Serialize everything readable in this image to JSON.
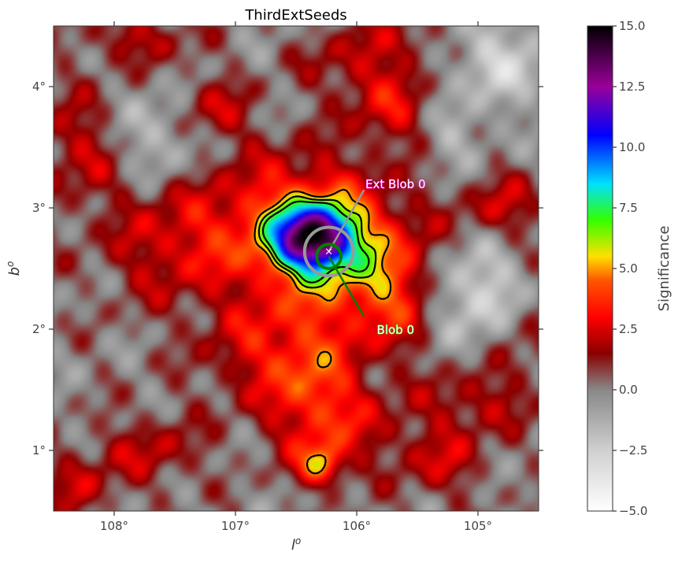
{
  "chart_data": {
    "type": "heatmap",
    "title": "ThirdExtSeeds",
    "xlabel": "l",
    "xlabel_sup": "o",
    "ylabel": "b",
    "ylabel_sup": "o",
    "x_ticks": [
      {
        "value": 108,
        "label": "108°"
      },
      {
        "value": 107,
        "label": "107°"
      },
      {
        "value": 106,
        "label": "106°"
      },
      {
        "value": 105,
        "label": "105°"
      }
    ],
    "y_ticks": [
      {
        "value": 4,
        "label": "4°"
      },
      {
        "value": 3,
        "label": "3°"
      },
      {
        "value": 2,
        "label": "2°"
      },
      {
        "value": 1,
        "label": "1°"
      }
    ],
    "xlim": [
      108.5,
      104.5
    ],
    "ylim": [
      0.5,
      4.5
    ],
    "colorbar": {
      "label": "Significance",
      "range": [
        -5,
        15
      ],
      "ticks": [
        {
          "value": 15,
          "label": "15.0"
        },
        {
          "value": 12.5,
          "label": "12.5"
        },
        {
          "value": 10,
          "label": "10.0"
        },
        {
          "value": 7.5,
          "label": "7.5"
        },
        {
          "value": 5,
          "label": "5.0"
        },
        {
          "value": 2.5,
          "label": "2.5"
        },
        {
          "value": 0,
          "label": "0.0"
        },
        {
          "value": -2.5,
          "label": "−2.5"
        },
        {
          "value": -5,
          "label": "−5.0"
        }
      ],
      "stops": [
        {
          "value": -5,
          "color": "#ffffff"
        },
        {
          "value": -2.5,
          "color": "#d0d0d0"
        },
        {
          "value": 0,
          "color": "#888888"
        },
        {
          "value": 1.5,
          "color": "#8b0000"
        },
        {
          "value": 3,
          "color": "#ff0000"
        },
        {
          "value": 4.5,
          "color": "#ff5500"
        },
        {
          "value": 5.5,
          "color": "#ffe000"
        },
        {
          "value": 7,
          "color": "#33ff00"
        },
        {
          "value": 8.5,
          "color": "#00e0ff"
        },
        {
          "value": 10.5,
          "color": "#0000ff"
        },
        {
          "value": 12.5,
          "color": "#990099"
        },
        {
          "value": 15,
          "color": "#000000"
        }
      ]
    },
    "sources": [
      {
        "l": 106.35,
        "b": 2.75,
        "amp": 10.5,
        "sx": 0.22,
        "sy": 0.18
      },
      {
        "l": 106.2,
        "b": 2.6,
        "amp": 4.0,
        "sx": 0.5,
        "sy": 0.45
      },
      {
        "l": 106.6,
        "b": 2.95,
        "amp": 2.5,
        "sx": 0.45,
        "sy": 0.35
      },
      {
        "l": 106.3,
        "b": 0.88,
        "amp": 4.5,
        "sx": 0.13,
        "sy": 0.12
      },
      {
        "l": 106.35,
        "b": 1.55,
        "amp": 2.8,
        "sx": 0.25,
        "sy": 0.35
      },
      {
        "l": 106.1,
        "b": 1.2,
        "amp": 2.0,
        "sx": 0.4,
        "sy": 0.25
      },
      {
        "l": 107.5,
        "b": 2.7,
        "amp": 2.5,
        "sx": 0.4,
        "sy": 0.35
      },
      {
        "l": 107.2,
        "b": 3.8,
        "amp": 2.3,
        "sx": 0.22,
        "sy": 0.2
      },
      {
        "l": 108.3,
        "b": 3.5,
        "amp": 2.0,
        "sx": 0.25,
        "sy": 0.35
      },
      {
        "l": 105.7,
        "b": 3.8,
        "amp": 2.5,
        "sx": 0.25,
        "sy": 0.2
      },
      {
        "l": 105.7,
        "b": 2.3,
        "amp": 2.5,
        "sx": 0.25,
        "sy": 0.35
      },
      {
        "l": 107.7,
        "b": 1.0,
        "amp": 2.0,
        "sx": 0.3,
        "sy": 0.2
      },
      {
        "l": 108.3,
        "b": 0.7,
        "amp": 2.0,
        "sx": 0.2,
        "sy": 0.2
      },
      {
        "l": 104.8,
        "b": 3.0,
        "amp": 2.2,
        "sx": 0.25,
        "sy": 0.2
      },
      {
        "l": 105.0,
        "b": 1.4,
        "amp": 2.0,
        "sx": 0.3,
        "sy": 0.2
      },
      {
        "l": 106.8,
        "b": 1.8,
        "amp": 2.2,
        "sx": 0.35,
        "sy": 0.3
      },
      {
        "l": 105.3,
        "b": 0.9,
        "amp": 2.0,
        "sx": 0.25,
        "sy": 0.2
      },
      {
        "l": 107.8,
        "b": 4.4,
        "amp": 2.0,
        "sx": 0.3,
        "sy": 0.15
      },
      {
        "l": 106.0,
        "b": 4.2,
        "amp": 2.0,
        "sx": 0.3,
        "sy": 0.2
      },
      {
        "l": 104.6,
        "b": 2.0,
        "amp": 1.5,
        "sx": 0.2,
        "sy": 0.3
      },
      {
        "l": 105.6,
        "b": 4.4,
        "amp": 1.5,
        "sx": 0.2,
        "sy": 0.15
      },
      {
        "l": 104.8,
        "b": 4.2,
        "amp": -2.5,
        "sx": 0.3,
        "sy": 0.25
      },
      {
        "l": 105.0,
        "b": 2.3,
        "amp": -3.0,
        "sx": 0.3,
        "sy": 0.3
      },
      {
        "l": 107.6,
        "b": 3.6,
        "amp": -2.0,
        "sx": 0.25,
        "sy": 0.25
      },
      {
        "l": 105.2,
        "b": 3.6,
        "amp": -1.5,
        "sx": 0.2,
        "sy": 0.2
      }
    ],
    "contour_levels": [
      5,
      6,
      7
    ],
    "contour_color": "#000000",
    "blobs": [
      {
        "name": "Ext Blob 0",
        "l": 106.23,
        "b": 2.64,
        "radius_deg": 0.2,
        "color": "#999999",
        "text_color": "#ffffff",
        "text_outline": "#ff00ff",
        "label_l": 105.68,
        "label_b": 3.2
      },
      {
        "name": "Blob 0",
        "l": 106.23,
        "b": 2.6,
        "radius_deg": 0.1,
        "color": "#008000",
        "text_color": "#ffffff",
        "text_outline": "#00ff00",
        "label_l": 105.68,
        "label_b": 2.0
      }
    ],
    "center_marker": {
      "l": 106.23,
      "b": 2.64,
      "symbol": "×"
    }
  }
}
